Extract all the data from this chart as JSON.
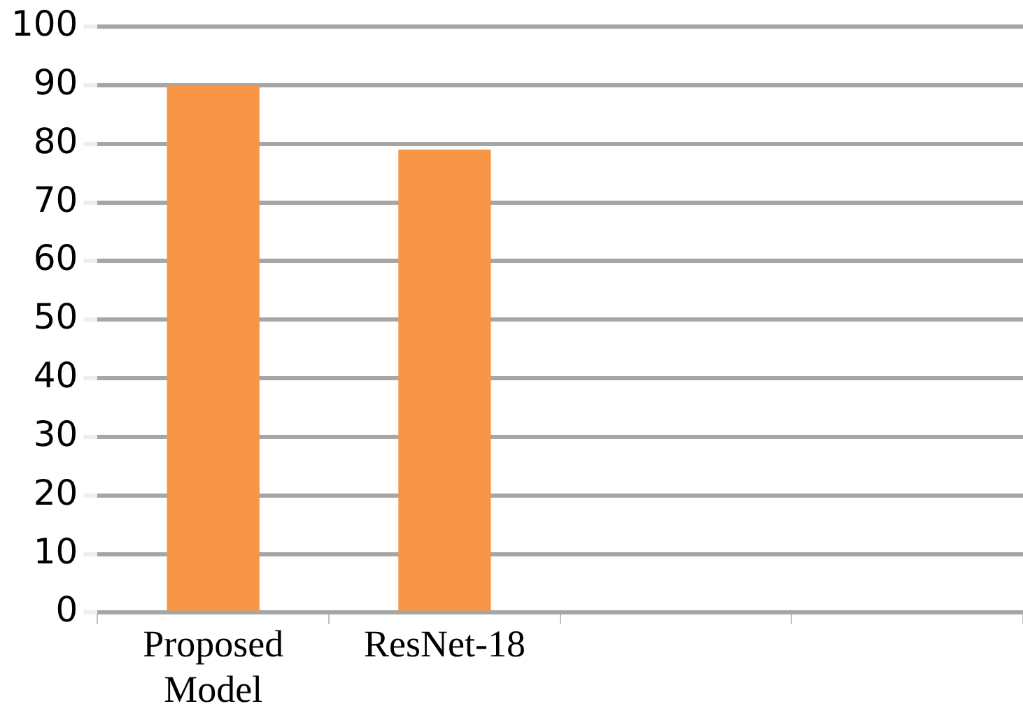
{
  "chart_data": {
    "type": "bar",
    "categories": [
      "Proposed Model",
      "ResNet-18",
      null,
      null
    ],
    "values": [
      90,
      79,
      null,
      null
    ],
    "color": "#f79646",
    "ylim": [
      0,
      100
    ],
    "yticks": [
      0,
      10,
      20,
      30,
      40,
      50,
      60,
      70,
      80,
      90,
      100
    ],
    "grid": "y",
    "legend": false
  }
}
